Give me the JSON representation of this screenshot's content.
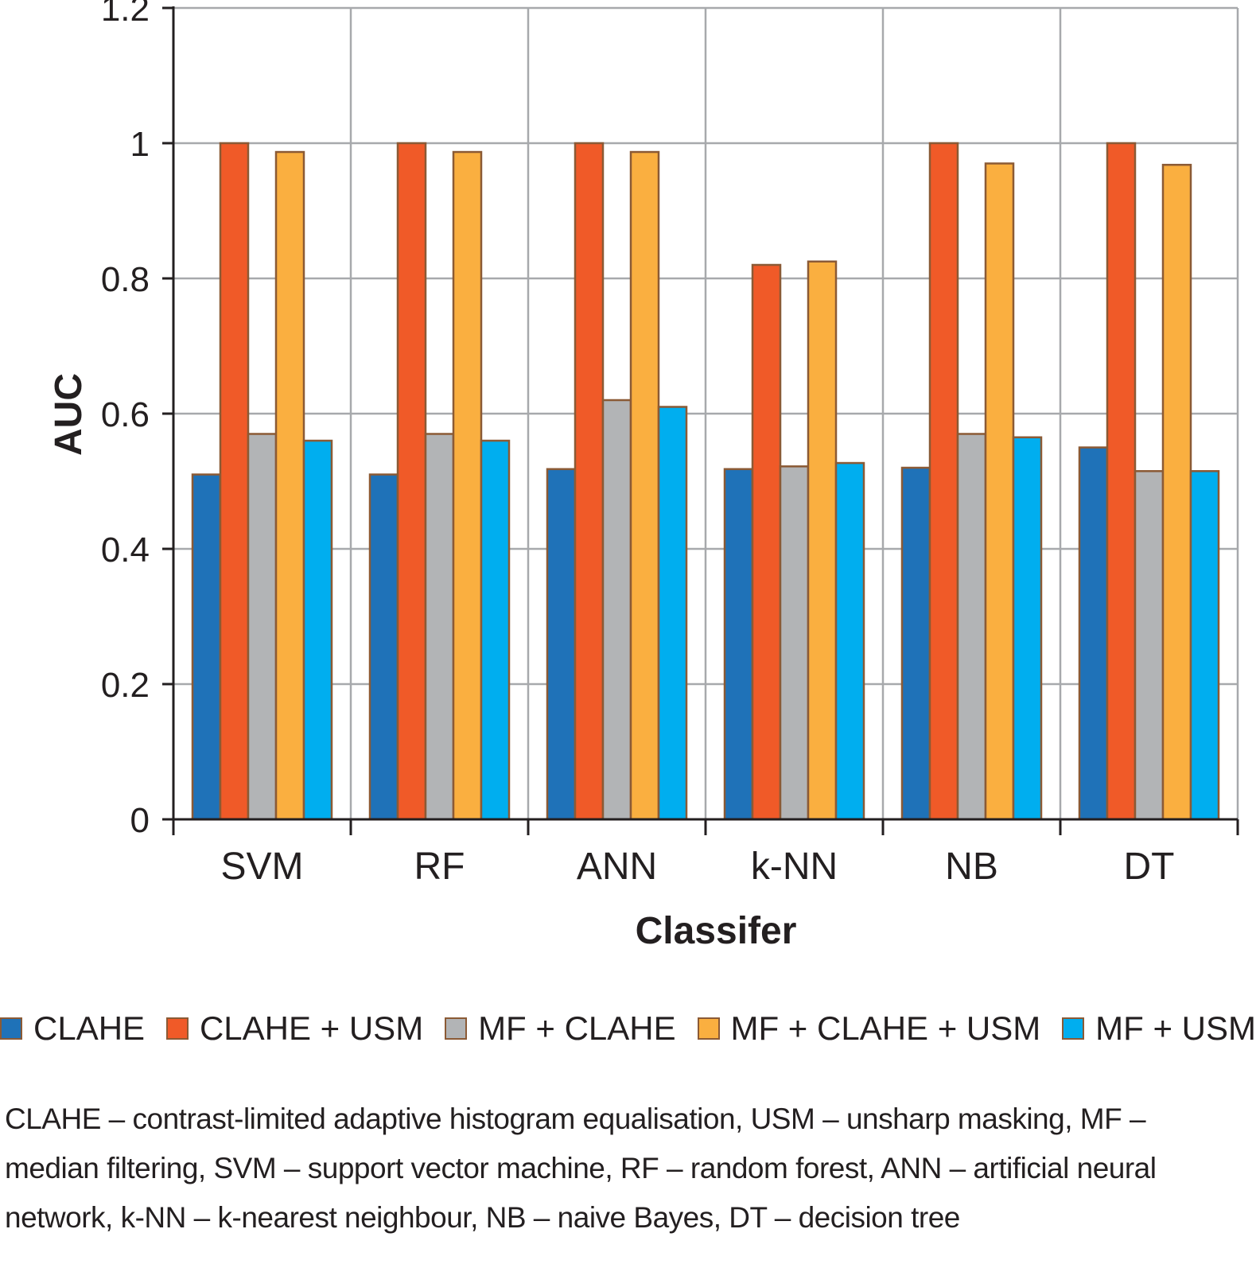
{
  "chart_data": {
    "type": "bar",
    "xlabel": "Classifer",
    "ylabel": "AUC",
    "ylim": [
      0,
      1.2
    ],
    "yticks": [
      "0",
      "0.2",
      "0.4",
      "0.6",
      "0.8",
      "1",
      "1.2"
    ],
    "categories": [
      "SVM",
      "RF",
      "ANN",
      "k-NN",
      "NB",
      "DT"
    ],
    "grid": true,
    "legend_position": "bottom",
    "series": [
      {
        "name": "CLAHE",
        "color": "#1f72b8",
        "values": [
          0.51,
          0.51,
          0.518,
          0.518,
          0.52,
          0.55
        ]
      },
      {
        "name": "CLAHE + USM",
        "color": "#f05a28",
        "values": [
          1.0,
          1.0,
          1.0,
          0.82,
          1.0,
          1.0
        ]
      },
      {
        "name": "MF + CLAHE",
        "color": "#b2b4b6",
        "values": [
          0.57,
          0.57,
          0.62,
          0.522,
          0.57,
          0.515
        ]
      },
      {
        "name": "MF + CLAHE + USM",
        "color": "#faaf40",
        "values": [
          0.987,
          0.987,
          0.987,
          0.825,
          0.97,
          0.968
        ]
      },
      {
        "name": "MF + USM",
        "color": "#00aeef",
        "values": [
          0.56,
          0.56,
          0.61,
          0.527,
          0.565,
          0.515
        ]
      }
    ]
  },
  "footnote": {
    "line1": "CLAHE – contrast-limited adaptive histogram equalisation, USM – unsharp masking, MF –",
    "line2": "median filtering, SVM – support vector machine, RF – random forest, ANN – artificial neural",
    "line3": "network, k-NN – k-nearest neighbour, NB – naive Bayes, DT – decision tree"
  },
  "legend": {
    "items": [
      "CLAHE",
      "CLAHE + USM",
      "MF + CLAHE",
      "MF + CLAHE + USM",
      "MF + USM"
    ]
  }
}
